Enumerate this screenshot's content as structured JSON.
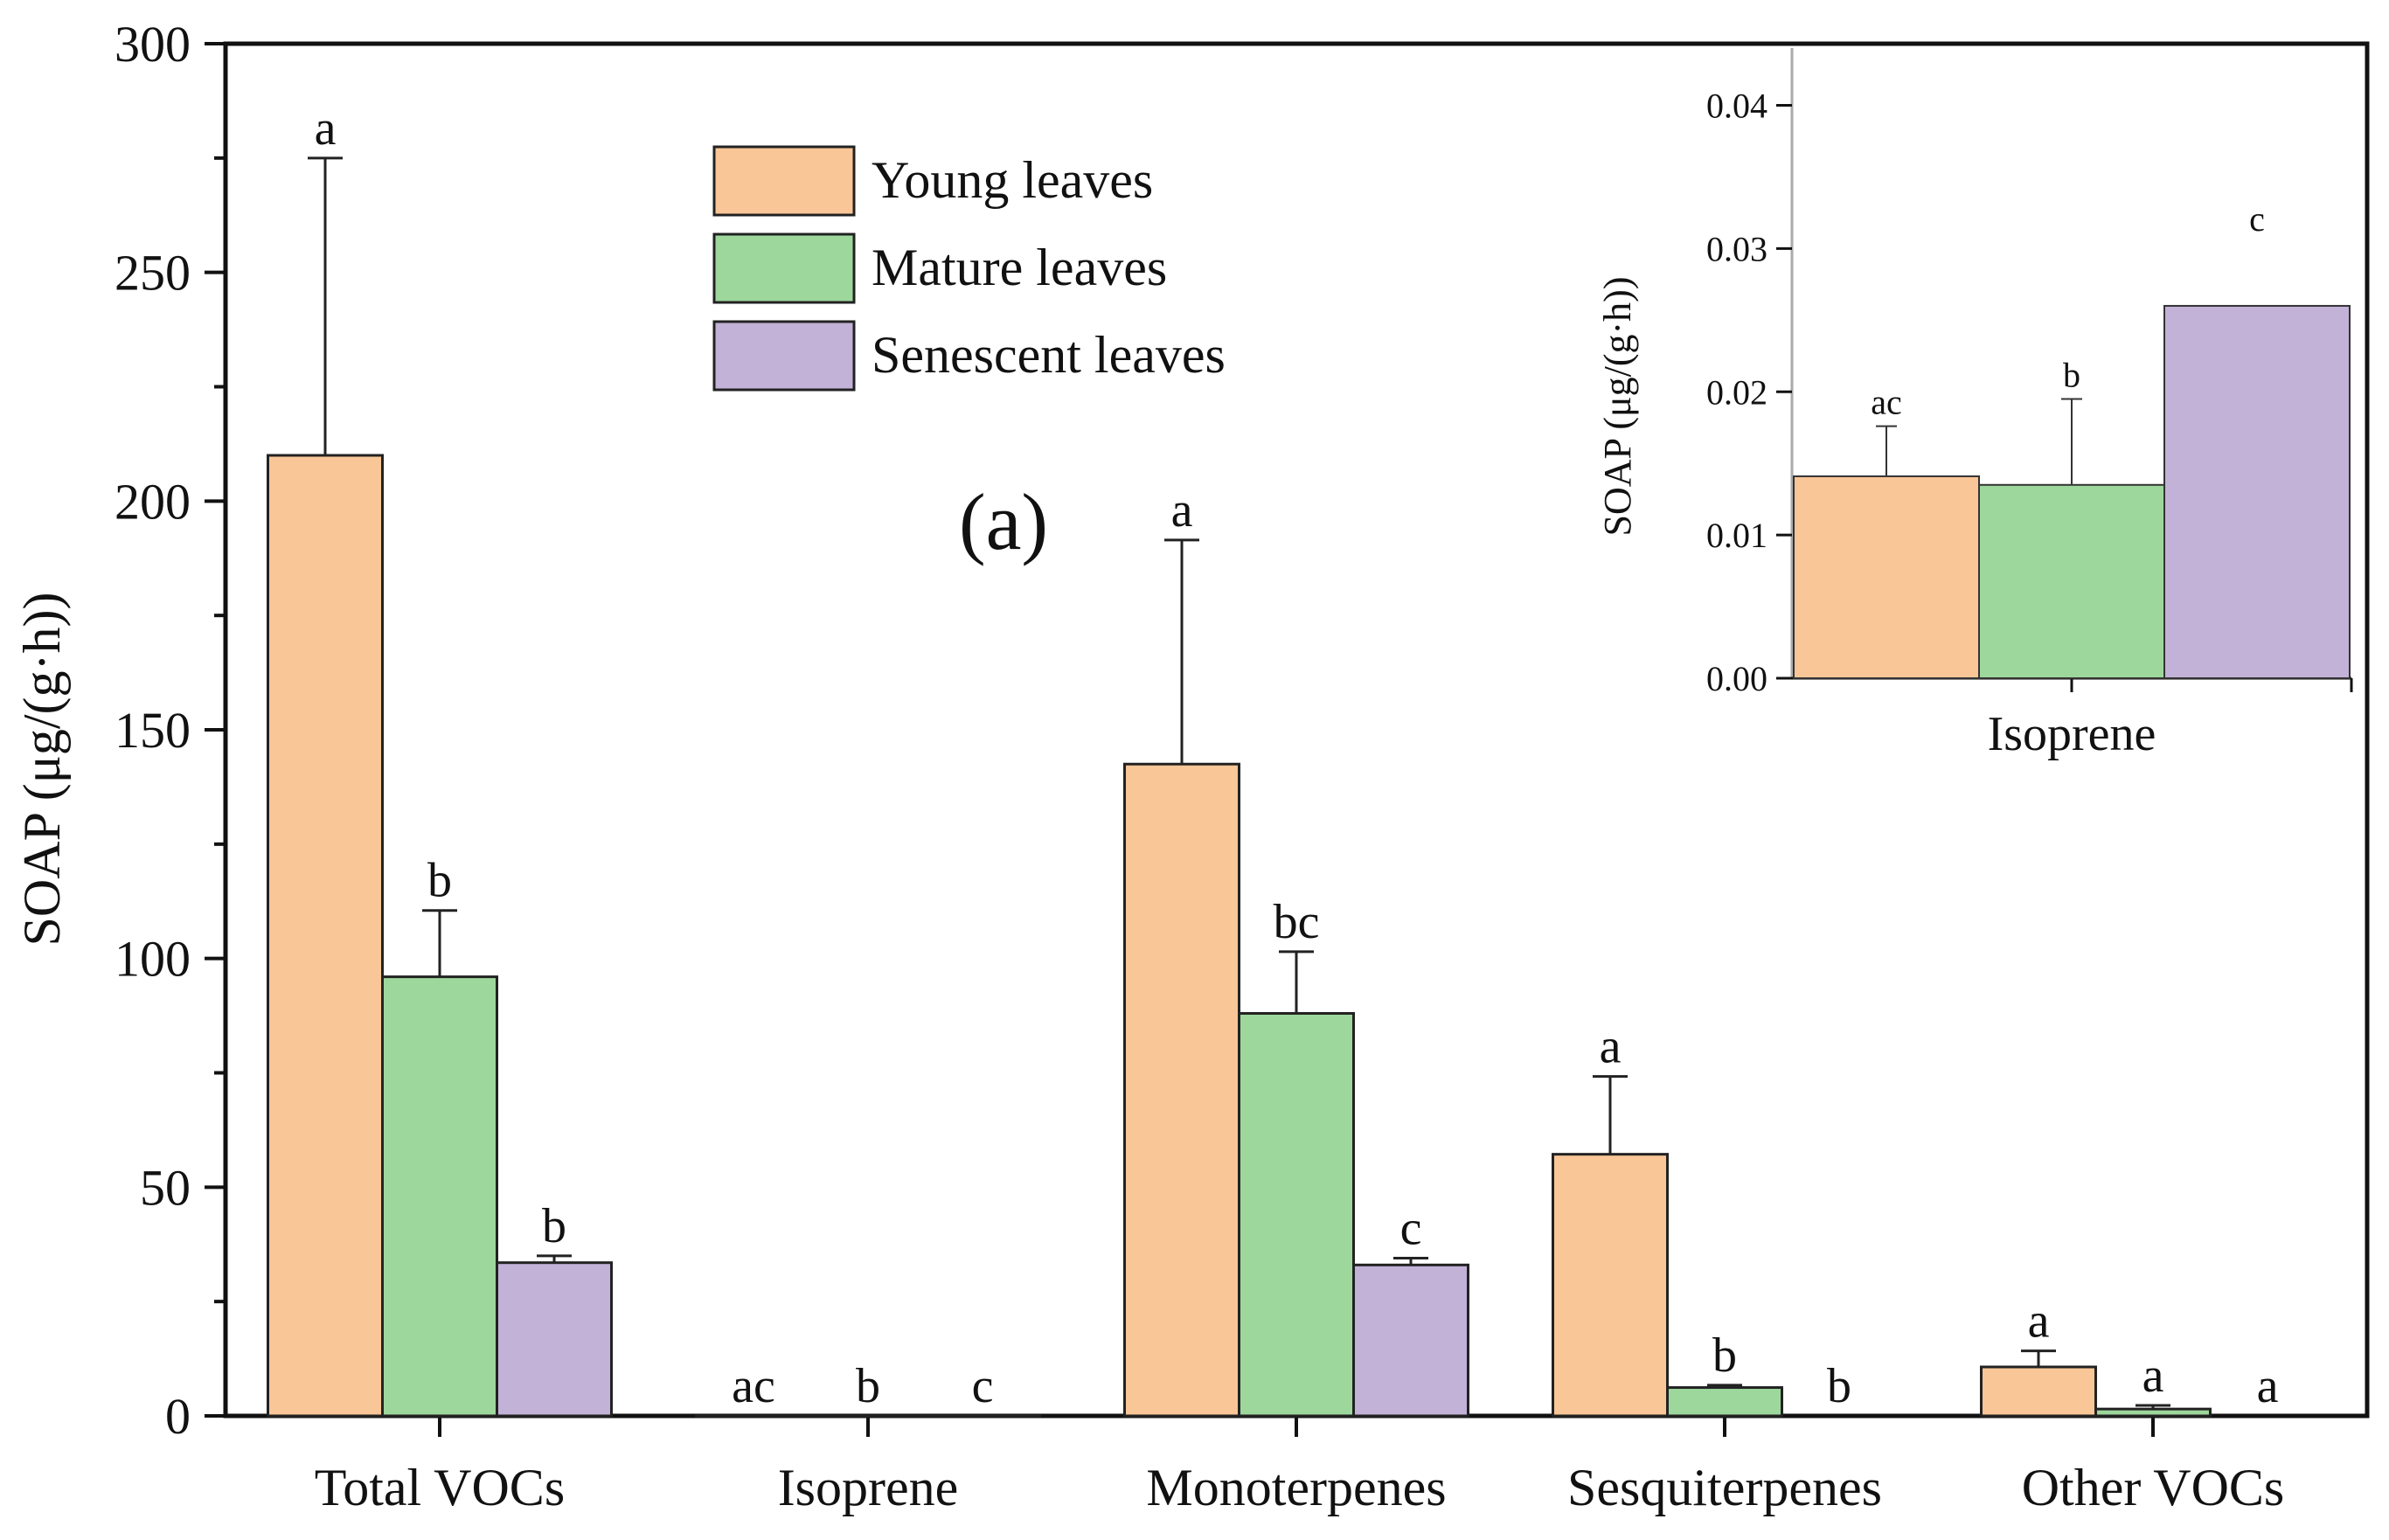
{
  "chart_data": [
    {
      "type": "bar",
      "panel_label": "(a)",
      "ylabel": "SOAP (μg/(g·h))",
      "xlabel": "",
      "ylim": [
        0,
        300
      ],
      "yticks": [
        "0",
        "50",
        "100",
        "150",
        "200",
        "250",
        "300"
      ],
      "categories": [
        "Total VOCs",
        "Isoprene",
        "Monoterpenes",
        "Sesquiterpenes",
        "Other VOCs"
      ],
      "series": [
        {
          "name": "Young leaves",
          "color": "#f9c697",
          "values": [
            210,
            0.014,
            142.5,
            57.2,
            10.7
          ],
          "errors": [
            65,
            0.004,
            49,
            17,
            3.5
          ],
          "letters": [
            "a",
            "ac",
            "a",
            "a",
            "a"
          ]
        },
        {
          "name": "Mature leaves",
          "color": "#9dd79c",
          "values": [
            96,
            0.0135,
            88,
            6.2,
            1.5
          ],
          "errors": [
            14.5,
            0.006,
            13.5,
            0.5,
            0.8
          ],
          "letters": [
            "b",
            "b",
            "bc",
            "b",
            "a"
          ]
        },
        {
          "name": "Senescent leaves",
          "color": "#c2b2d7",
          "values": [
            33.5,
            0.026,
            33,
            0,
            0
          ],
          "errors": [
            1.5,
            0,
            1.5,
            0,
            0
          ],
          "letters": [
            "b",
            "c",
            "c",
            "b",
            "a"
          ]
        }
      ],
      "legend_position": "top-center"
    },
    {
      "type": "bar",
      "inset": true,
      "ylabel": "SOAP (μg/(g·h))",
      "ylim": [
        0,
        0.044
      ],
      "yticks": [
        "0.00",
        "0.01",
        "0.02",
        "0.03",
        "0.04"
      ],
      "categories": [
        "Isoprene"
      ],
      "series": [
        {
          "name": "Young leaves",
          "color": "#f9c697",
          "values": [
            0.0141
          ],
          "errors": [
            0.0035
          ],
          "letters": [
            "ac"
          ]
        },
        {
          "name": "Mature leaves",
          "color": "#9dd79c",
          "values": [
            0.0135
          ],
          "errors": [
            0.006
          ],
          "letters": [
            "b"
          ]
        },
        {
          "name": "Senescent leaves",
          "color": "#c2b2d7",
          "values": [
            0.026
          ],
          "errors": [
            0
          ],
          "letters": [
            "c"
          ]
        }
      ]
    }
  ]
}
